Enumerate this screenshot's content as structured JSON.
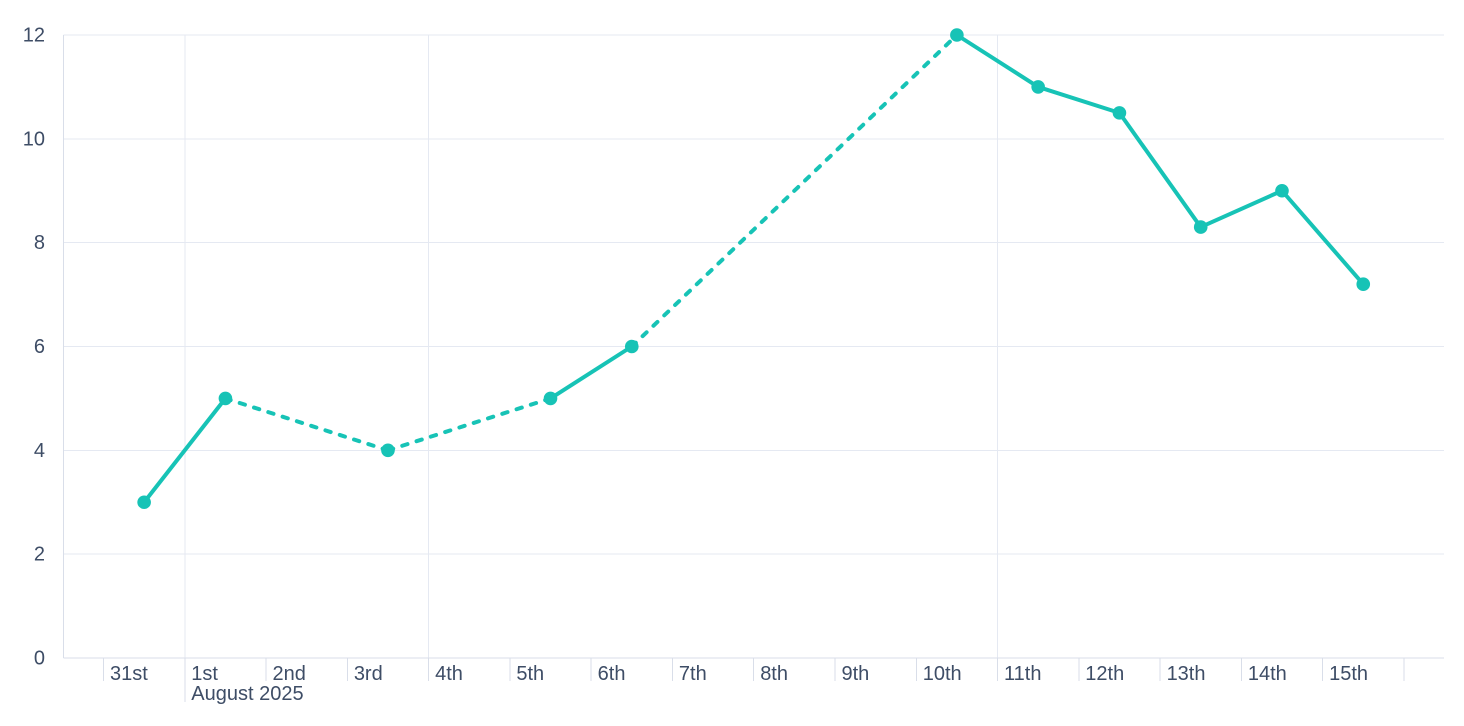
{
  "chart_data": {
    "type": "line",
    "legend": "off",
    "grid": "on",
    "colors": {
      "series": "#17C3B6",
      "axis_text": "#3E4D66",
      "gridline": "#E5E9F2",
      "axis_line": "#D9DEE9"
    },
    "y_axis": {
      "min": 0,
      "max": 12,
      "tick_interval": 2,
      "tick_values": [
        0,
        2,
        4,
        6,
        8,
        10,
        12
      ],
      "tick_labels": [
        "0",
        "2",
        "4",
        "6",
        "8",
        "10",
        "12"
      ]
    },
    "x_axis": {
      "unit": "day",
      "tick_labels": [
        "31st",
        "1st",
        "2nd",
        "3rd",
        "4th",
        "5th",
        "6th",
        "7th",
        "8th",
        "9th",
        "10th",
        "11th",
        "12th",
        "13th",
        "14th",
        "15th"
      ],
      "month_label": "August 2025",
      "month_label_under": "1st",
      "month_start_boundary": 1,
      "boundary_count": 17,
      "major_gridline_boundaries": [
        1,
        4,
        11
      ]
    },
    "series": [
      {
        "name": "daily-values",
        "color": "#17C3B6",
        "points": [
          {
            "label": "31st",
            "date": "2025-07-31",
            "day_index": 0,
            "value": 3
          },
          {
            "label": "1st",
            "date": "2025-08-01",
            "day_index": 1,
            "value": 5
          },
          {
            "label": "3rd",
            "date": "2025-08-03",
            "day_index": 3,
            "value": 4
          },
          {
            "label": "5th",
            "date": "2025-08-05",
            "day_index": 5,
            "value": 5
          },
          {
            "label": "6th",
            "date": "2025-08-06",
            "day_index": 6,
            "value": 6
          },
          {
            "label": "10th",
            "date": "2025-08-10",
            "day_index": 10,
            "value": 12
          },
          {
            "label": "11th",
            "date": "2025-08-11",
            "day_index": 11,
            "value": 11
          },
          {
            "label": "12th",
            "date": "2025-08-12",
            "day_index": 12,
            "value": 10.5
          },
          {
            "label": "13th",
            "date": "2025-08-13",
            "day_index": 13,
            "value": 8.3
          },
          {
            "label": "14th",
            "date": "2025-08-14",
            "day_index": 14,
            "value": 9
          },
          {
            "label": "15th",
            "date": "2025-08-15",
            "day_index": 15,
            "value": 7.2
          }
        ],
        "segments": [
          {
            "from": 0,
            "to": 1,
            "style": "solid"
          },
          {
            "from": 1,
            "to": 2,
            "style": "dashed"
          },
          {
            "from": 2,
            "to": 3,
            "style": "dashed"
          },
          {
            "from": 3,
            "to": 4,
            "style": "solid"
          },
          {
            "from": 4,
            "to": 5,
            "style": "dashed"
          },
          {
            "from": 5,
            "to": 6,
            "style": "solid"
          },
          {
            "from": 6,
            "to": 7,
            "style": "solid"
          },
          {
            "from": 7,
            "to": 8,
            "style": "solid"
          },
          {
            "from": 8,
            "to": 9,
            "style": "solid"
          },
          {
            "from": 9,
            "to": 10,
            "style": "solid"
          }
        ]
      }
    ]
  }
}
